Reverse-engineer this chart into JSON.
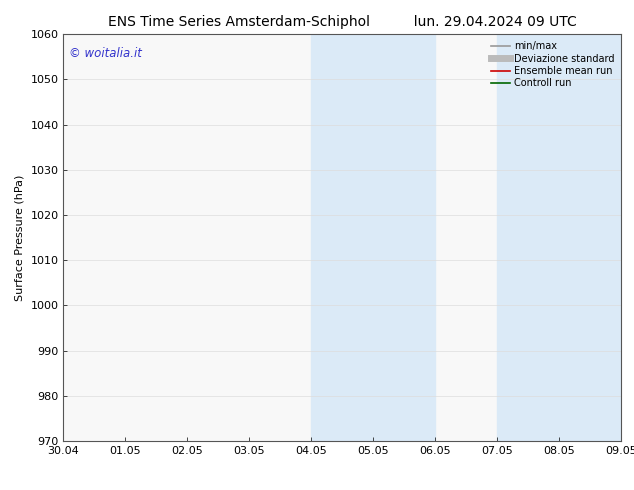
{
  "title_left": "ENS Time Series Amsterdam-Schiphol",
  "title_right": "lun. 29.04.2024 09 UTC",
  "ylabel": "Surface Pressure (hPa)",
  "ylim": [
    970,
    1060
  ],
  "yticks": [
    970,
    980,
    990,
    1000,
    1010,
    1020,
    1030,
    1040,
    1050,
    1060
  ],
  "xtick_labels": [
    "30.04",
    "01.05",
    "02.05",
    "03.05",
    "04.05",
    "05.05",
    "06.05",
    "07.05",
    "08.05",
    "09.05"
  ],
  "xtick_positions": [
    0,
    1,
    2,
    3,
    4,
    5,
    6,
    7,
    8,
    9
  ],
  "shaded_bands": [
    {
      "xmin": 4.0,
      "xmax": 5.0,
      "color": "#dbeaf7"
    },
    {
      "xmin": 5.0,
      "xmax": 6.0,
      "color": "#dbeaf7"
    },
    {
      "xmin": 7.0,
      "xmax": 8.0,
      "color": "#dbeaf7"
    },
    {
      "xmin": 8.0,
      "xmax": 9.0,
      "color": "#dbeaf7"
    }
  ],
  "watermark_text": "© woitalia.it",
  "watermark_color": "#3333cc",
  "legend_entries": [
    {
      "label": "min/max",
      "color": "#999999",
      "lw": 1.2
    },
    {
      "label": "Deviazione standard",
      "color": "#bbbbbb",
      "lw": 5
    },
    {
      "label": "Ensemble mean run",
      "color": "#cc0000",
      "lw": 1.2
    },
    {
      "label": "Controll run",
      "color": "#006600",
      "lw": 1.2
    }
  ],
  "background_color": "#ffffff",
  "plot_bg_color": "#f8f8f8",
  "grid_color": "#dddddd",
  "title_fontsize": 10,
  "label_fontsize": 8,
  "tick_fontsize": 8,
  "watermark_fontsize": 8.5
}
